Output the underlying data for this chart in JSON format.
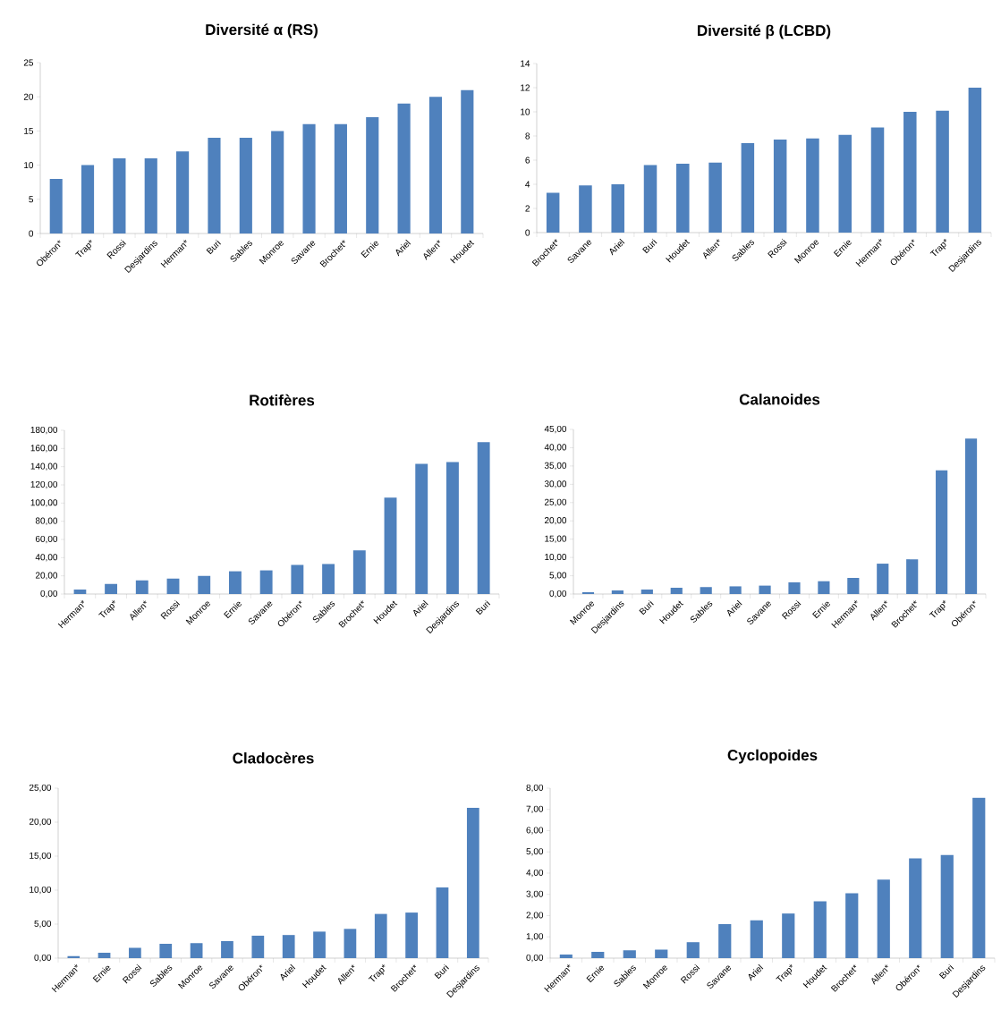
{
  "chart_data": [
    {
      "type": "bar",
      "title": "Diversité α (RS)",
      "categories": [
        "Obéron*",
        "Trap*",
        "Rossi",
        "Desjardins",
        "Herman*",
        "Buri",
        "Sables",
        "Monroe",
        "Savane",
        "Brochet*",
        "Ernie",
        "Ariel",
        "Allen*",
        "Houdet"
      ],
      "values": [
        8,
        10,
        11,
        11,
        12,
        14,
        14,
        15,
        16,
        16,
        17,
        19,
        20,
        21
      ],
      "color": "#4f81bd",
      "ylim": [
        0,
        25
      ],
      "yticks": [
        0,
        5,
        10,
        15,
        20,
        25
      ]
    },
    {
      "type": "bar",
      "title": "Diversité β (LCBD)",
      "categories": [
        "Brochet*",
        "Savane",
        "Ariel",
        "Buri",
        "Houdet",
        "Allen*",
        "Sables",
        "Rossi",
        "Monroe",
        "Ernie",
        "Herman*",
        "Obéron*",
        "Trap*",
        "Desjardins"
      ],
      "values": [
        3.3,
        3.9,
        4.0,
        5.6,
        5.7,
        5.8,
        7.4,
        7.7,
        7.8,
        8.1,
        8.7,
        10.0,
        10.1,
        12.0
      ],
      "color": "#4f81bd",
      "ylim": [
        0,
        14
      ],
      "yticks": [
        0,
        2,
        4,
        6,
        8,
        10,
        12,
        14
      ]
    },
    {
      "type": "bar",
      "title": "Rotifères",
      "categories": [
        "Herman*",
        "Trap*",
        "Allen*",
        "Rossi",
        "Monroe",
        "Ernie",
        "Savane",
        "Obéron*",
        "Sables",
        "Brochet*",
        "Houdet",
        "Ariel",
        "Desjardins",
        "Buri"
      ],
      "values": [
        5,
        11,
        15,
        17,
        20,
        25,
        26,
        32,
        33,
        48,
        106,
        143,
        145,
        167
      ],
      "color": "#4f81bd",
      "ylim": [
        0,
        180
      ],
      "yticks": [
        {
          "value": 0,
          "label": "0,00"
        },
        {
          "value": 20,
          "label": "20,00"
        },
        {
          "value": 40,
          "label": "40,00"
        },
        {
          "value": 60,
          "label": "60,00"
        },
        {
          "value": 80,
          "label": "80,00"
        },
        {
          "value": 100,
          "label": "100,00"
        },
        {
          "value": 120,
          "label": "120,00"
        },
        {
          "value": 140,
          "label": "140,00"
        },
        {
          "value": 160,
          "label": "160,00"
        },
        {
          "value": 180,
          "label": "180,00"
        }
      ]
    },
    {
      "type": "bar",
      "title": "Calanoides",
      "categories": [
        "Monroe",
        "Desjardins",
        "Buri",
        "Houdet",
        "Sables",
        "Ariel",
        "Savane",
        "Rossi",
        "Ernie",
        "Herman*",
        "Allen*",
        "Brochet*",
        "Trap*",
        "Obéron*"
      ],
      "values": [
        0.5,
        1.0,
        1.2,
        1.7,
        1.9,
        2.1,
        2.3,
        3.2,
        3.5,
        4.4,
        8.3,
        9.5,
        33.8,
        42.5
      ],
      "color": "#4f81bd",
      "ylim": [
        0,
        45
      ],
      "yticks": [
        {
          "value": 0,
          "label": "0,00"
        },
        {
          "value": 5,
          "label": "5,00"
        },
        {
          "value": 10,
          "label": "10,00"
        },
        {
          "value": 15,
          "label": "15,00"
        },
        {
          "value": 20,
          "label": "20,00"
        },
        {
          "value": 25,
          "label": "25,00"
        },
        {
          "value": 30,
          "label": "30,00"
        },
        {
          "value": 35,
          "label": "35,00"
        },
        {
          "value": 40,
          "label": "40,00"
        },
        {
          "value": 45,
          "label": "45,00"
        }
      ]
    },
    {
      "type": "bar",
      "title": "Cladocères",
      "categories": [
        "Herman*",
        "Ernie",
        "Rossi",
        "Sables",
        "Monroe",
        "Savane",
        "Obéron*",
        "Ariel",
        "Houdet",
        "Allen*",
        "Trap*",
        "Brochet*",
        "Buri",
        "Desjardins"
      ],
      "values": [
        0.3,
        0.8,
        1.5,
        2.1,
        2.2,
        2.5,
        3.3,
        3.4,
        3.9,
        4.3,
        6.5,
        6.7,
        10.4,
        22.1
      ],
      "color": "#4f81bd",
      "ylim": [
        0,
        25
      ],
      "yticks": [
        {
          "value": 0,
          "label": "0,00"
        },
        {
          "value": 5,
          "label": "5,00"
        },
        {
          "value": 10,
          "label": "10,00"
        },
        {
          "value": 15,
          "label": "15,00"
        },
        {
          "value": 20,
          "label": "20,00"
        },
        {
          "value": 25,
          "label": "25,00"
        }
      ]
    },
    {
      "type": "bar",
      "title": "Cyclopoides",
      "categories": [
        "Herman*",
        "Ernie",
        "Sables",
        "Monroe",
        "Rossi",
        "Savane",
        "Ariel",
        "Trap*",
        "Houdet",
        "Brochet*",
        "Allen*",
        "Obéron*",
        "Buri",
        "Desjardins"
      ],
      "values": [
        0.17,
        0.3,
        0.37,
        0.4,
        0.75,
        1.6,
        1.78,
        2.1,
        2.67,
        3.05,
        3.7,
        4.7,
        4.85,
        7.55
      ],
      "color": "#4f81bd",
      "ylim": [
        0,
        8
      ],
      "yticks": [
        {
          "value": 0,
          "label": "0,00"
        },
        {
          "value": 1,
          "label": "1,00"
        },
        {
          "value": 2,
          "label": "2,00"
        },
        {
          "value": 3,
          "label": "3,00"
        },
        {
          "value": 4,
          "label": "4,00"
        },
        {
          "value": 5,
          "label": "5,00"
        },
        {
          "value": 6,
          "label": "6,00"
        },
        {
          "value": 7,
          "label": "7,00"
        },
        {
          "value": 8,
          "label": "8,00"
        }
      ]
    }
  ]
}
